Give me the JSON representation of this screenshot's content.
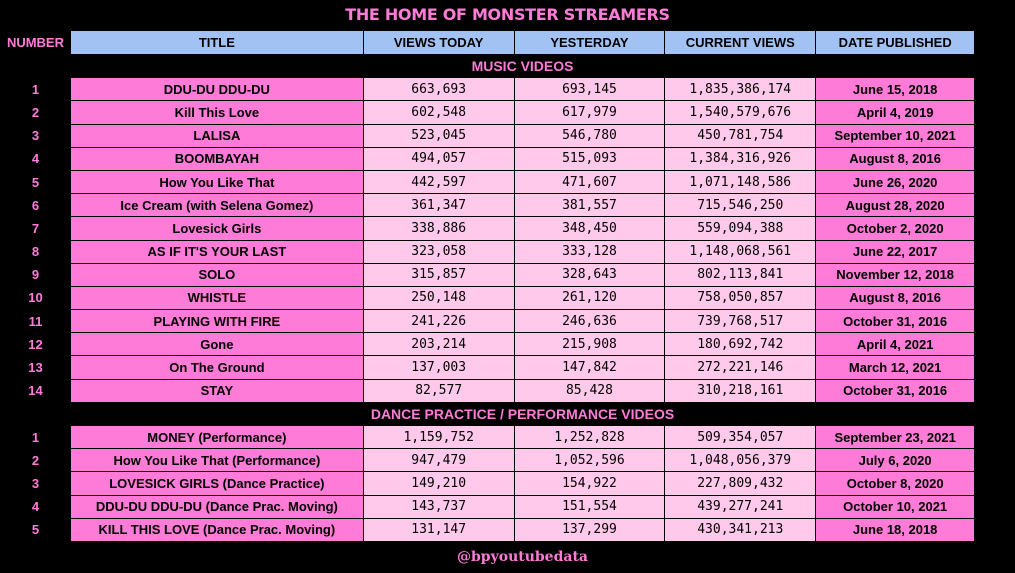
{
  "title": "THE HOME OF MONSTER STREAMERS",
  "header": {
    "number": "NUMBER",
    "title": "TITLE",
    "views_today": "VIEWS TODAY",
    "yesterday": "YESTERDAY",
    "current_views": "CURRENT VIEWS",
    "date_published": "DATE PUBLISHED"
  },
  "sections": [
    {
      "name": "MUSIC VIDEOS",
      "rows": [
        {
          "num": "1",
          "title": "DDU-DU DDU-DU",
          "today": "663,693",
          "yesterday": "693,145",
          "current": "1,835,386,174",
          "date": "June 15, 2018"
        },
        {
          "num": "2",
          "title": "Kill This Love",
          "today": "602,548",
          "yesterday": "617,979",
          "current": "1,540,579,676",
          "date": "April 4, 2019"
        },
        {
          "num": "3",
          "title": "LALISA",
          "today": "523,045",
          "yesterday": "546,780",
          "current": "450,781,754",
          "date": "September 10, 2021"
        },
        {
          "num": "4",
          "title": "BOOMBAYAH",
          "today": "494,057",
          "yesterday": "515,093",
          "current": "1,384,316,926",
          "date": "August 8, 2016"
        },
        {
          "num": "5",
          "title": "How You Like That",
          "today": "442,597",
          "yesterday": "471,607",
          "current": "1,071,148,586",
          "date": "June 26, 2020"
        },
        {
          "num": "6",
          "title": "Ice Cream (with Selena Gomez)",
          "today": "361,347",
          "yesterday": "381,557",
          "current": "715,546,250",
          "date": "August 28, 2020"
        },
        {
          "num": "7",
          "title": "Lovesick Girls",
          "today": "338,886",
          "yesterday": "348,450",
          "current": "559,094,388",
          "date": "October 2, 2020"
        },
        {
          "num": "8",
          "title": "AS IF IT'S YOUR LAST",
          "today": "323,058",
          "yesterday": "333,128",
          "current": "1,148,068,561",
          "date": "June 22, 2017"
        },
        {
          "num": "9",
          "title": "SOLO",
          "today": "315,857",
          "yesterday": "328,643",
          "current": "802,113,841",
          "date": "November 12, 2018"
        },
        {
          "num": "10",
          "title": "WHISTLE",
          "today": "250,148",
          "yesterday": "261,120",
          "current": "758,050,857",
          "date": "August 8, 2016"
        },
        {
          "num": "11",
          "title": "PLAYING WITH FIRE",
          "today": "241,226",
          "yesterday": "246,636",
          "current": "739,768,517",
          "date": "October 31, 2016"
        },
        {
          "num": "12",
          "title": "Gone",
          "today": "203,214",
          "yesterday": "215,908",
          "current": "180,692,742",
          "date": "April 4, 2021"
        },
        {
          "num": "13",
          "title": "On The Ground",
          "today": "137,003",
          "yesterday": "147,842",
          "current": "272,221,146",
          "date": "March 12, 2021"
        },
        {
          "num": "14",
          "title": "STAY",
          "today": "82,577",
          "yesterday": "85,428",
          "current": "310,218,161",
          "date": "October 31, 2016"
        }
      ]
    },
    {
      "name": "DANCE PRACTICE / PERFORMANCE VIDEOS",
      "rows": [
        {
          "num": "1",
          "title": "MONEY (Performance)",
          "today": "1,159,752",
          "yesterday": "1,252,828",
          "current": "509,354,057",
          "date": "September 23, 2021"
        },
        {
          "num": "2",
          "title": "How You Like That (Performance)",
          "today": "947,479",
          "yesterday": "1,052,596",
          "current": "1,048,056,379",
          "date": "July 6, 2020"
        },
        {
          "num": "3",
          "title": "LOVESICK GIRLS (Dance Practice)",
          "today": "149,210",
          "yesterday": "154,922",
          "current": "227,809,432",
          "date": "October 8, 2020"
        },
        {
          "num": "4",
          "title": "DDU-DU DDU-DU (Dance Prac. Moving)",
          "today": "143,737",
          "yesterday": "151,554",
          "current": "439,277,241",
          "date": "October 10, 2021"
        },
        {
          "num": "5",
          "title": "KILL THIS LOVE (Dance Prac. Moving)",
          "today": "131,147",
          "yesterday": "137,299",
          "current": "430,341,213",
          "date": "June 18, 2018"
        }
      ]
    }
  ],
  "footer": "@bpyoutubedata",
  "colors": {
    "pink": "#ff7bd8",
    "light_pink": "#ffc9ec",
    "header_blue": "#a3c2f4",
    "background": "#000000"
  }
}
